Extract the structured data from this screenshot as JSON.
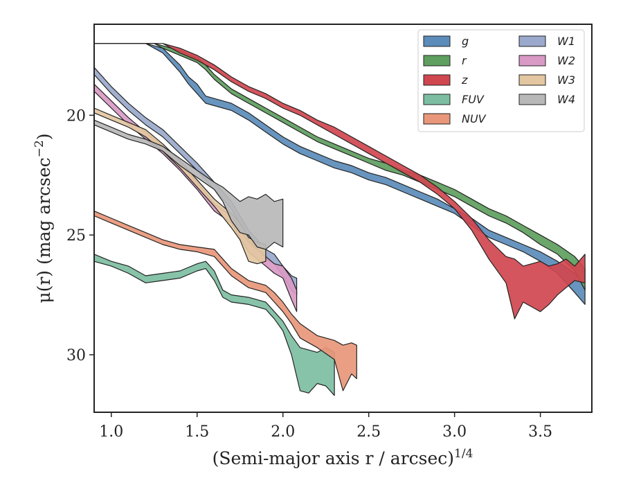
{
  "chart_data": {
    "type": "area",
    "xlabel": "(Semi-major axis r / arcsec)",
    "xlabel_superscript": "1/4",
    "ylabel": "μ(r) (mag arcsec",
    "ylabel_superscript": "−2",
    "ylabel_close": ")",
    "xlim": [
      0.9,
      3.8
    ],
    "ylim": [
      32.4,
      16.2
    ],
    "y_inverted": true,
    "xticks": [
      1.0,
      1.5,
      2.0,
      2.5,
      3.0,
      3.5
    ],
    "xtick_labels": [
      "1.0",
      "1.5",
      "2.0",
      "2.5",
      "3.0",
      "3.5"
    ],
    "yticks": [
      20,
      25,
      30
    ],
    "ytick_labels": [
      "20",
      "25",
      "30"
    ],
    "grid": false,
    "legend": {
      "placement": "top-right",
      "columns": 2
    },
    "series": [
      {
        "name": "g",
        "color": "#5b8cba",
        "points": [
          [
            0.9,
            17.0,
            17.0
          ],
          [
            1.2,
            17.0,
            17.0
          ],
          [
            1.3,
            17.2,
            17.4
          ],
          [
            1.4,
            17.9,
            18.2
          ],
          [
            1.45,
            18.4,
            18.7
          ],
          [
            1.5,
            18.7,
            19.1
          ],
          [
            1.55,
            19.2,
            19.5
          ],
          [
            1.6,
            19.3,
            19.6
          ],
          [
            1.7,
            19.5,
            19.8
          ],
          [
            1.8,
            19.9,
            20.2
          ],
          [
            1.9,
            20.4,
            20.7
          ],
          [
            2.0,
            20.9,
            21.2
          ],
          [
            2.1,
            21.3,
            21.6
          ],
          [
            2.2,
            21.6,
            21.9
          ],
          [
            2.3,
            21.9,
            22.2
          ],
          [
            2.4,
            22.1,
            22.4
          ],
          [
            2.5,
            22.4,
            22.7
          ],
          [
            2.6,
            22.6,
            22.9
          ],
          [
            2.7,
            22.9,
            23.2
          ],
          [
            2.8,
            23.2,
            23.5
          ],
          [
            2.9,
            23.5,
            23.8
          ],
          [
            3.0,
            23.9,
            24.1
          ],
          [
            3.1,
            24.3,
            24.6
          ],
          [
            3.2,
            24.8,
            25.1
          ],
          [
            3.3,
            25.1,
            25.4
          ],
          [
            3.4,
            25.4,
            25.7
          ],
          [
            3.5,
            25.7,
            26.1
          ],
          [
            3.6,
            26.1,
            26.6
          ],
          [
            3.7,
            26.6,
            27.4
          ],
          [
            3.76,
            27.1,
            27.9
          ]
        ]
      },
      {
        "name": "r",
        "color": "#5e9e5e",
        "points": [
          [
            0.9,
            17.0,
            17.0
          ],
          [
            1.25,
            17.0,
            17.0
          ],
          [
            1.3,
            17.1,
            17.2
          ],
          [
            1.4,
            17.3,
            17.5
          ],
          [
            1.5,
            17.6,
            17.8
          ],
          [
            1.55,
            17.9,
            18.1
          ],
          [
            1.6,
            18.3,
            18.5
          ],
          [
            1.7,
            18.9,
            19.1
          ],
          [
            1.8,
            19.3,
            19.5
          ],
          [
            1.9,
            19.7,
            19.9
          ],
          [
            2.0,
            20.1,
            20.3
          ],
          [
            2.1,
            20.5,
            20.7
          ],
          [
            2.2,
            20.9,
            21.1
          ],
          [
            2.3,
            21.2,
            21.4
          ],
          [
            2.4,
            21.5,
            21.7
          ],
          [
            2.5,
            21.8,
            22.0
          ],
          [
            2.6,
            22.0,
            22.3
          ],
          [
            2.7,
            22.3,
            22.5
          ],
          [
            2.8,
            22.5,
            22.8
          ],
          [
            2.9,
            22.8,
            23.1
          ],
          [
            3.0,
            23.1,
            23.4
          ],
          [
            3.1,
            23.5,
            23.8
          ],
          [
            3.2,
            23.9,
            24.2
          ],
          [
            3.3,
            24.2,
            24.5
          ],
          [
            3.4,
            24.6,
            24.9
          ],
          [
            3.5,
            25.0,
            25.4
          ],
          [
            3.6,
            25.4,
            25.8
          ],
          [
            3.7,
            25.9,
            26.5
          ],
          [
            3.76,
            26.4,
            27.3
          ]
        ]
      },
      {
        "name": "z",
        "color": "#d0464f",
        "points": [
          [
            0.9,
            17.0,
            17.0
          ],
          [
            1.3,
            17.0,
            17.0
          ],
          [
            1.4,
            17.2,
            17.4
          ],
          [
            1.5,
            17.5,
            17.7
          ],
          [
            1.6,
            17.9,
            18.1
          ],
          [
            1.7,
            18.4,
            18.6
          ],
          [
            1.8,
            18.8,
            19.0
          ],
          [
            1.9,
            19.1,
            19.3
          ],
          [
            2.0,
            19.5,
            19.7
          ],
          [
            2.1,
            19.8,
            20.0
          ],
          [
            2.2,
            20.2,
            20.4
          ],
          [
            2.3,
            20.5,
            20.8
          ],
          [
            2.4,
            20.9,
            21.2
          ],
          [
            2.5,
            21.3,
            21.6
          ],
          [
            2.6,
            21.7,
            22.0
          ],
          [
            2.7,
            22.1,
            22.4
          ],
          [
            2.8,
            22.5,
            22.8
          ],
          [
            2.9,
            23.0,
            23.3
          ],
          [
            3.0,
            23.6,
            23.9
          ],
          [
            3.1,
            24.3,
            24.8
          ],
          [
            3.2,
            25.2,
            26.0
          ],
          [
            3.3,
            25.9,
            27.0
          ],
          [
            3.35,
            26.0,
            28.5
          ],
          [
            3.4,
            26.3,
            27.8
          ],
          [
            3.45,
            26.2,
            28.0
          ],
          [
            3.5,
            26.1,
            28.2
          ],
          [
            3.55,
            26.3,
            27.9
          ],
          [
            3.6,
            26.2,
            27.5
          ],
          [
            3.65,
            26.0,
            27.2
          ],
          [
            3.7,
            26.3,
            26.9
          ],
          [
            3.76,
            25.8,
            27.0
          ]
        ]
      },
      {
        "name": "FUV",
        "color": "#7dbea2",
        "points": [
          [
            0.9,
            25.8,
            26.1
          ],
          [
            1.0,
            26.1,
            26.3
          ],
          [
            1.1,
            26.3,
            26.6
          ],
          [
            1.2,
            26.7,
            27.0
          ],
          [
            1.3,
            26.6,
            26.9
          ],
          [
            1.4,
            26.5,
            26.8
          ],
          [
            1.5,
            26.2,
            26.5
          ],
          [
            1.55,
            26.1,
            26.4
          ],
          [
            1.6,
            26.5,
            26.9
          ],
          [
            1.65,
            27.3,
            27.6
          ],
          [
            1.7,
            27.5,
            27.8
          ],
          [
            1.8,
            27.6,
            27.9
          ],
          [
            1.9,
            27.8,
            28.1
          ],
          [
            1.95,
            28.2,
            28.5
          ],
          [
            2.0,
            28.6,
            29.0
          ],
          [
            2.05,
            29.2,
            30.0
          ],
          [
            2.1,
            29.7,
            31.5
          ],
          [
            2.15,
            29.8,
            31.6
          ],
          [
            2.2,
            29.9,
            31.2
          ],
          [
            2.25,
            29.7,
            31.3
          ],
          [
            2.3,
            29.9,
            31.7
          ]
        ]
      },
      {
        "name": "NUV",
        "color": "#e8977a",
        "points": [
          [
            0.9,
            24.0,
            24.2
          ],
          [
            1.0,
            24.3,
            24.5
          ],
          [
            1.1,
            24.6,
            24.8
          ],
          [
            1.2,
            24.9,
            25.1
          ],
          [
            1.3,
            25.2,
            25.4
          ],
          [
            1.4,
            25.4,
            25.6
          ],
          [
            1.5,
            25.5,
            25.7
          ],
          [
            1.6,
            25.6,
            25.9
          ],
          [
            1.65,
            26.0,
            26.3
          ],
          [
            1.7,
            26.4,
            26.7
          ],
          [
            1.8,
            26.9,
            27.2
          ],
          [
            1.9,
            27.1,
            27.4
          ],
          [
            1.95,
            27.4,
            27.8
          ],
          [
            2.0,
            27.8,
            28.2
          ],
          [
            2.05,
            28.3,
            28.7
          ],
          [
            2.1,
            28.7,
            29.3
          ],
          [
            2.2,
            29.2,
            29.7
          ],
          [
            2.3,
            29.4,
            30.2
          ],
          [
            2.35,
            29.6,
            31.5
          ],
          [
            2.4,
            29.5,
            30.8
          ],
          [
            2.43,
            29.6,
            31.0
          ]
        ]
      },
      {
        "name": "W1",
        "color": "#9aa9cc",
        "points": [
          [
            0.9,
            18.0,
            18.3
          ],
          [
            1.0,
            18.8,
            19.1
          ],
          [
            1.1,
            19.5,
            19.8
          ],
          [
            1.2,
            20.1,
            20.4
          ],
          [
            1.3,
            20.6,
            20.9
          ],
          [
            1.4,
            21.3,
            21.6
          ],
          [
            1.5,
            22.0,
            22.3
          ],
          [
            1.6,
            22.8,
            23.1
          ],
          [
            1.7,
            23.6,
            23.9
          ],
          [
            1.8,
            24.8,
            25.2
          ],
          [
            1.9,
            25.6,
            26.0
          ],
          [
            1.95,
            25.8,
            26.2
          ],
          [
            2.0,
            26.3,
            26.7
          ],
          [
            2.05,
            26.7,
            27.3
          ],
          [
            2.08,
            26.8,
            27.5
          ]
        ]
      },
      {
        "name": "W2",
        "color": "#d99ac6",
        "points": [
          [
            0.9,
            18.7,
            19.0
          ],
          [
            1.0,
            19.4,
            19.7
          ],
          [
            1.1,
            20.1,
            20.4
          ],
          [
            1.2,
            20.7,
            21.0
          ],
          [
            1.3,
            21.3,
            21.6
          ],
          [
            1.4,
            22.0,
            22.3
          ],
          [
            1.5,
            22.8,
            23.1
          ],
          [
            1.6,
            23.7,
            24.0
          ],
          [
            1.7,
            24.2,
            24.5
          ],
          [
            1.8,
            25.3,
            25.7
          ],
          [
            1.9,
            25.9,
            26.3
          ],
          [
            1.95,
            26.2,
            26.6
          ],
          [
            2.0,
            26.3,
            26.8
          ],
          [
            2.05,
            26.8,
            27.7
          ],
          [
            2.08,
            27.3,
            28.2
          ]
        ]
      },
      {
        "name": "W3",
        "color": "#e3c7a1",
        "points": [
          [
            0.9,
            19.7,
            19.9
          ],
          [
            1.0,
            20.0,
            20.2
          ],
          [
            1.1,
            20.3,
            20.5
          ],
          [
            1.2,
            20.6,
            20.9
          ],
          [
            1.3,
            21.2,
            21.5
          ],
          [
            1.4,
            21.9,
            22.2
          ],
          [
            1.5,
            22.7,
            23.0
          ],
          [
            1.6,
            23.5,
            23.8
          ],
          [
            1.7,
            24.1,
            24.7
          ],
          [
            1.75,
            24.5,
            25.2
          ],
          [
            1.8,
            25.1,
            26.1
          ],
          [
            1.85,
            25.3,
            26.2
          ],
          [
            1.9,
            25.4,
            26.1
          ]
        ]
      },
      {
        "name": "W4",
        "color": "#b8b8b8",
        "points": [
          [
            0.9,
            20.2,
            20.4
          ],
          [
            1.0,
            20.5,
            20.7
          ],
          [
            1.1,
            20.8,
            21.0
          ],
          [
            1.2,
            21.0,
            21.2
          ],
          [
            1.3,
            21.3,
            21.5
          ],
          [
            1.4,
            21.8,
            22.1
          ],
          [
            1.5,
            22.3,
            22.6
          ],
          [
            1.6,
            22.8,
            23.1
          ],
          [
            1.65,
            23.0,
            23.6
          ],
          [
            1.7,
            23.3,
            24.4
          ],
          [
            1.75,
            23.6,
            24.9
          ],
          [
            1.8,
            23.4,
            25.0
          ],
          [
            1.85,
            23.5,
            25.5
          ],
          [
            1.9,
            23.3,
            25.6
          ],
          [
            1.95,
            23.6,
            25.3
          ],
          [
            2.0,
            23.5,
            25.5
          ]
        ]
      }
    ]
  }
}
